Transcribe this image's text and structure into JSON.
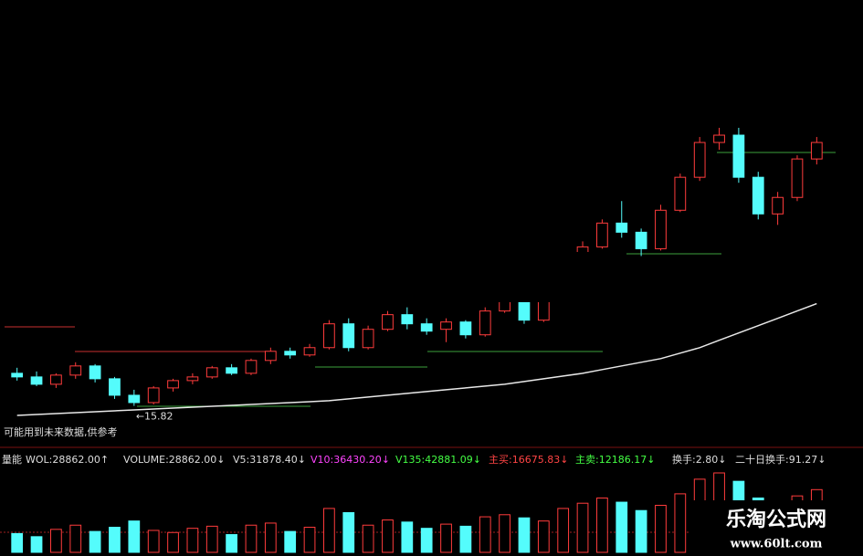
{
  "chart_data": {
    "type": "candlestick",
    "annotation": "←15.82",
    "note": "可能用到未来数据,供参考",
    "up_color": "#ff3c3c",
    "down_color": "#54fcfc",
    "ma_color": "#e8e8e8",
    "open": [
      17.6,
      17.4,
      17.0,
      17.5,
      18.0,
      17.3,
      16.4,
      16.0,
      16.8,
      17.2,
      17.4,
      17.9,
      17.6,
      18.3,
      18.8,
      18.6,
      19.0,
      20.3,
      19.0,
      20.0,
      20.8,
      20.3,
      20.0,
      20.4,
      19.7,
      21.0,
      21.8,
      20.5,
      22.1,
      23.3,
      24.5,
      25.8,
      25.3,
      24.4,
      26.5,
      28.3,
      30.2,
      30.6,
      28.3,
      26.3,
      27.2,
      29.3
    ],
    "high": [
      17.9,
      17.7,
      17.6,
      18.2,
      18.1,
      17.4,
      16.7,
      16.9,
      17.3,
      17.6,
      18.0,
      18.1,
      18.4,
      19.0,
      19.0,
      19.2,
      20.5,
      20.6,
      20.2,
      21.0,
      21.2,
      20.6,
      20.6,
      20.5,
      21.2,
      22.0,
      22.5,
      22.3,
      23.5,
      24.8,
      26.0,
      27.0,
      25.5,
      26.8,
      28.5,
      30.5,
      31.0,
      31.0,
      28.6,
      27.5,
      29.5,
      30.5
    ],
    "low": [
      17.2,
      16.9,
      16.8,
      17.3,
      17.1,
      16.2,
      15.82,
      15.9,
      16.6,
      17.0,
      17.3,
      17.5,
      17.5,
      18.1,
      18.4,
      18.5,
      18.9,
      18.8,
      18.9,
      19.9,
      20.0,
      19.7,
      19.3,
      19.5,
      19.6,
      20.9,
      20.3,
      20.4,
      22.0,
      23.1,
      24.4,
      25.0,
      24.0,
      24.3,
      26.4,
      28.1,
      29.8,
      28.0,
      26.0,
      25.7,
      27.0,
      29.0
    ],
    "close": [
      17.4,
      17.0,
      17.5,
      18.0,
      17.3,
      16.4,
      16.0,
      16.8,
      17.2,
      17.4,
      17.9,
      17.6,
      18.3,
      18.8,
      18.6,
      19.0,
      20.3,
      19.0,
      20.0,
      20.8,
      20.3,
      19.9,
      20.4,
      19.7,
      21.0,
      21.8,
      20.5,
      22.1,
      23.3,
      24.5,
      25.8,
      25.3,
      24.4,
      26.5,
      28.3,
      30.2,
      30.6,
      28.3,
      26.3,
      27.2,
      29.3,
      30.2
    ],
    "ma": [
      15.3,
      15.35,
      15.4,
      15.45,
      15.5,
      15.55,
      15.6,
      15.65,
      15.7,
      15.75,
      15.8,
      15.85,
      15.9,
      15.95,
      16.0,
      16.05,
      16.1,
      16.2,
      16.3,
      16.4,
      16.5,
      16.6,
      16.7,
      16.8,
      16.9,
      17.0,
      17.15,
      17.3,
      17.45,
      17.6,
      17.8,
      18.0,
      18.2,
      18.4,
      18.7,
      19.0,
      19.4,
      19.8,
      20.2,
      20.6,
      21.0,
      21.4
    ],
    "volume": [
      180,
      150,
      220,
      260,
      200,
      240,
      300,
      210,
      190,
      230,
      250,
      170,
      260,
      280,
      200,
      240,
      420,
      380,
      260,
      310,
      290,
      230,
      270,
      250,
      340,
      360,
      330,
      300,
      420,
      470,
      520,
      480,
      400,
      450,
      560,
      700,
      760,
      680,
      520,
      430,
      540,
      600
    ],
    "indicator": {
      "name": "量能",
      "items": [
        {
          "text": "WOL:28862.00↑",
          "color": "#dddddd"
        },
        {
          "text": "VOLUME:28862.00↓",
          "color": "#dddddd"
        },
        {
          "text": "V5:31878.40↓",
          "color": "#dddddd"
        },
        {
          "text": "V10:36430.20↓",
          "color": "#ff44ff"
        },
        {
          "text": "V135:42881.09↓",
          "color": "#44ff44"
        },
        {
          "text": "主买:16675.83↓",
          "color": "#ff4444"
        },
        {
          "text": "主卖:12186.17↓",
          "color": "#44ff44"
        },
        {
          "text": "换手:2.80↓",
          "color": "#dddddd"
        },
        {
          "text": "二十日换手:91.27↓",
          "color": "#dddddd"
        }
      ]
    },
    "watermark": {
      "title": "乐淘公式网",
      "url": "www.60lt.com"
    }
  }
}
